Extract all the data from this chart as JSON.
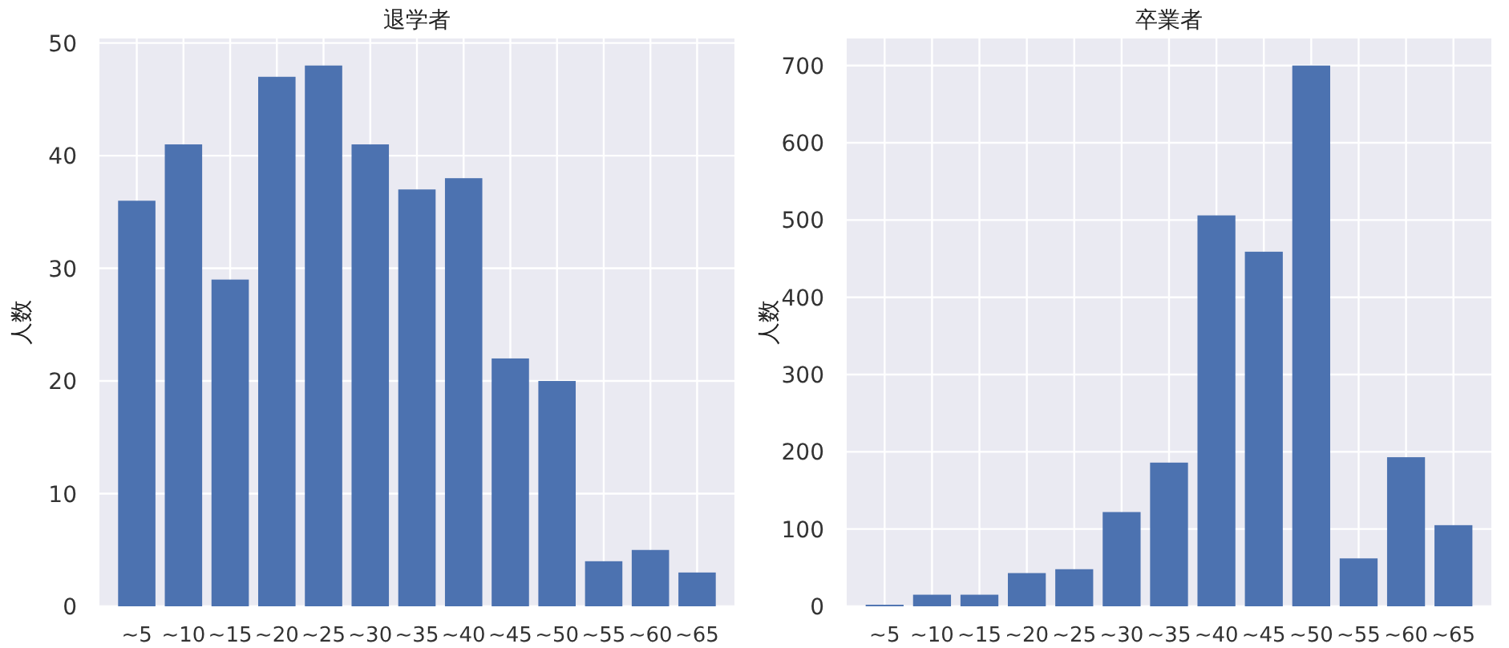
{
  "chart_data": [
    {
      "type": "bar",
      "title": "退学者",
      "ylabel": "人数",
      "categories": [
        "~5",
        "~10",
        "~15",
        "~20",
        "~25",
        "~30",
        "~35",
        "~40",
        "~45",
        "~50",
        "~55",
        "~60",
        "~65"
      ],
      "values": [
        36,
        41,
        29,
        47,
        48,
        41,
        37,
        38,
        22,
        20,
        4,
        5,
        3
      ],
      "color": "#4c72b0",
      "ylim": [
        0,
        50.4
      ],
      "yticks": [
        0,
        10,
        20,
        30,
        40,
        50
      ],
      "grid": true
    },
    {
      "type": "bar",
      "title": "卒業者",
      "ylabel": "人数",
      "categories": [
        "~5",
        "~10",
        "~15",
        "~20",
        "~25",
        "~30",
        "~35",
        "~40",
        "~45",
        "~50",
        "~55",
        "~60",
        "~65"
      ],
      "values": [
        2,
        15,
        15,
        43,
        48,
        122,
        186,
        506,
        459,
        700,
        62,
        193,
        105
      ],
      "color": "#4c72b0",
      "ylim": [
        0,
        735
      ],
      "yticks": [
        0,
        100,
        200,
        300,
        400,
        500,
        600,
        700
      ],
      "grid": true
    }
  ]
}
